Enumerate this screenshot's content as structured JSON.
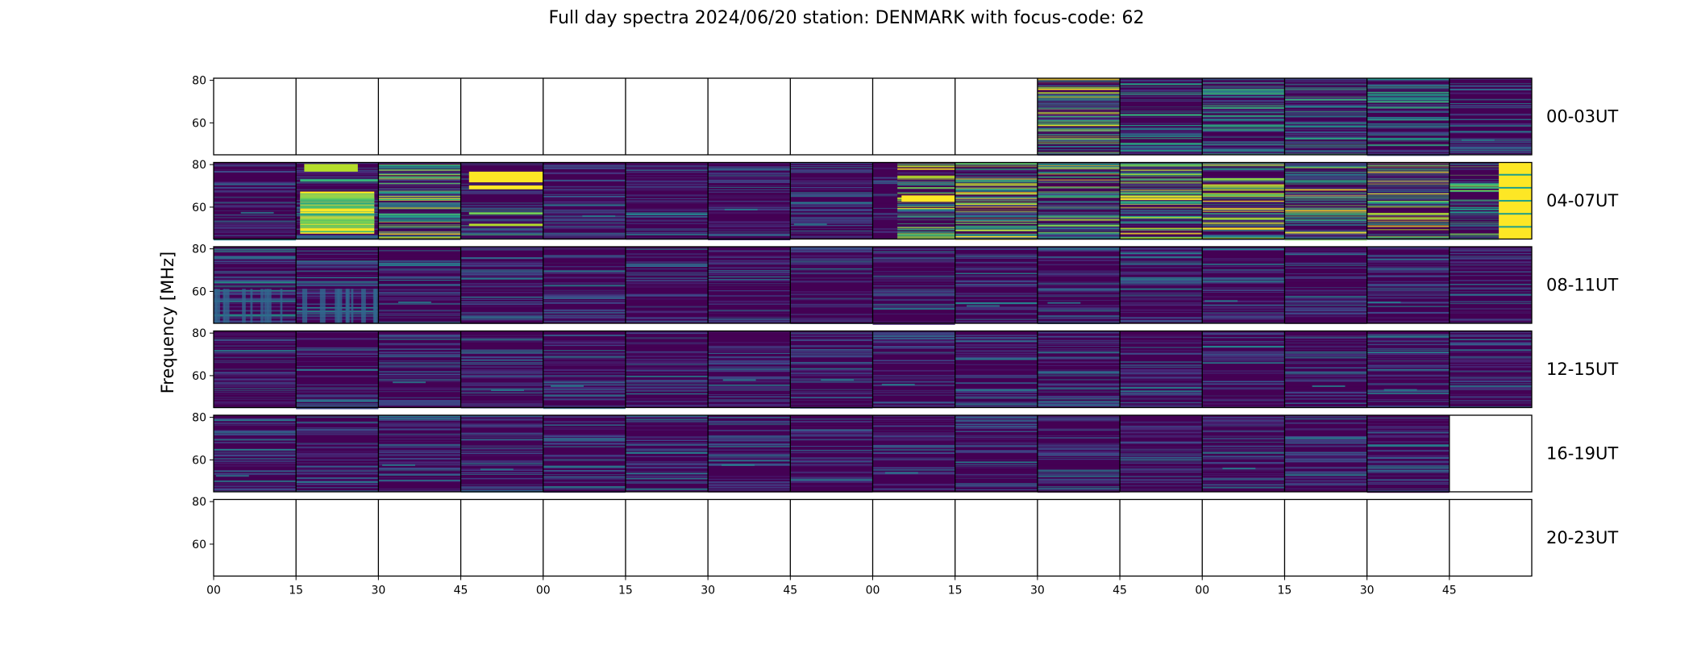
{
  "chart_data": {
    "type": "heatmap",
    "title": "Full day spectra 2024/06/20 station: DENMARK with focus-code: 62",
    "ylabel": "Frequency [MHz]",
    "xlabel": "",
    "yticks": [
      "80",
      "60"
    ],
    "ylim": [
      45,
      81
    ],
    "xticks": [
      "00",
      "15",
      "30",
      "45",
      "00",
      "15",
      "30",
      "45",
      "00",
      "15",
      "30",
      "45",
      "00",
      "15",
      "30",
      "45"
    ],
    "colormap": [
      "#440154",
      "#482878",
      "#3e4a89",
      "#31688e",
      "#26828e",
      "#1f9e89",
      "#35b779",
      "#6ece58",
      "#b5de2b",
      "#fde725"
    ],
    "rows": [
      {
        "label": "00-03UT",
        "panels": [
          "empty",
          "empty",
          "empty",
          "empty",
          "empty",
          "empty",
          "empty",
          "empty",
          "empty",
          "empty",
          "strong",
          "medium",
          "medium",
          "medium",
          "medium",
          "low"
        ]
      },
      {
        "label": "04-07UT",
        "panels": [
          "low",
          "burst",
          "strong",
          "band",
          "low",
          "low",
          "low",
          "low",
          "onset",
          "strong",
          "strong",
          "strong",
          "strong",
          "strong",
          "strong",
          "edge"
        ]
      },
      {
        "label": "08-11UT",
        "panels": [
          "rfi",
          "rfi",
          "low",
          "low",
          "low",
          "low",
          "low",
          "low",
          "low",
          "low",
          "low",
          "low",
          "low",
          "low",
          "low",
          "low"
        ]
      },
      {
        "label": "12-15UT",
        "panels": [
          "low",
          "low",
          "low",
          "low",
          "low",
          "low",
          "low",
          "low",
          "low",
          "low",
          "low",
          "low",
          "low",
          "low",
          "low",
          "low"
        ]
      },
      {
        "label": "16-19UT",
        "panels": [
          "low",
          "low",
          "low",
          "low",
          "low",
          "low",
          "low",
          "low",
          "low",
          "low",
          "low",
          "low",
          "low",
          "low",
          "low",
          "empty"
        ]
      },
      {
        "label": "20-23UT",
        "panels": [
          "empty",
          "empty",
          "empty",
          "empty",
          "empty",
          "empty",
          "empty",
          "empty",
          "empty",
          "empty",
          "empty",
          "empty",
          "empty",
          "empty",
          "empty",
          "empty"
        ]
      }
    ],
    "grid": false,
    "legend": "none"
  }
}
